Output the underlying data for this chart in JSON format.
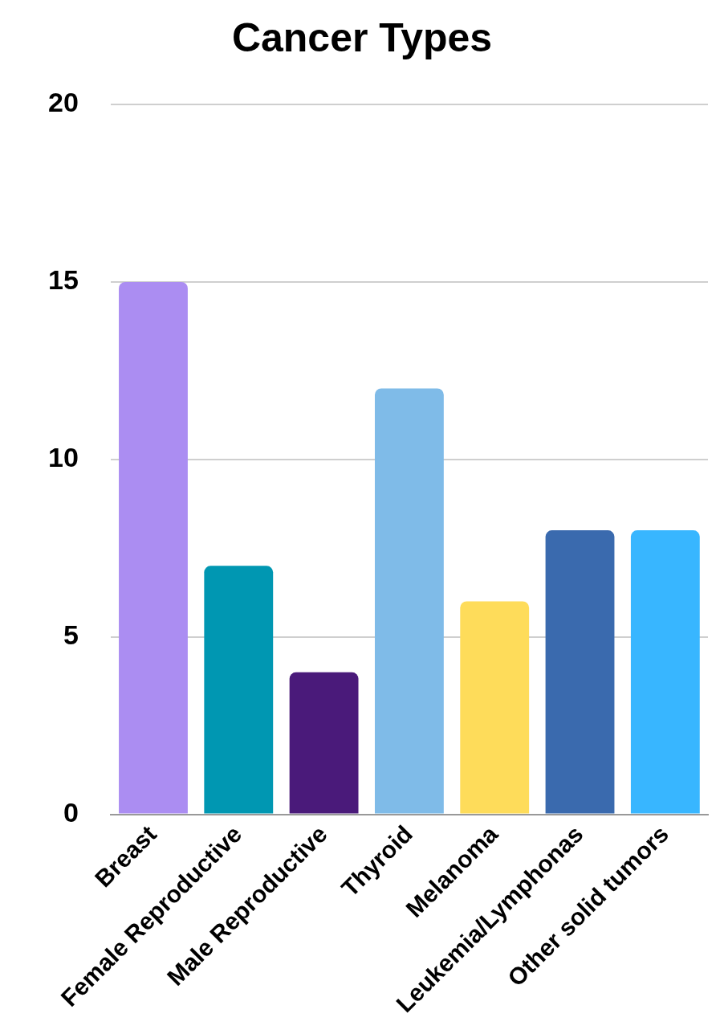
{
  "chart_data": {
    "type": "bar",
    "title": "Cancer Types",
    "categories": [
      "Breast",
      "Female Reproductive",
      "Male Reproductive",
      "Thyroid",
      "Melanoma",
      "Leukemia/Lymphonas",
      "Other solid tumors"
    ],
    "values": [
      15,
      7,
      4,
      12,
      6,
      8,
      8
    ],
    "colors": [
      "#ab8df2",
      "#0097b2",
      "#4a1a7a",
      "#7fbbe8",
      "#fedc5a",
      "#3a6aae",
      "#38b6ff"
    ],
    "ylim": [
      0,
      20
    ],
    "yticks": [
      0,
      5,
      10,
      15,
      20
    ],
    "grid": "y",
    "legend": false
  }
}
